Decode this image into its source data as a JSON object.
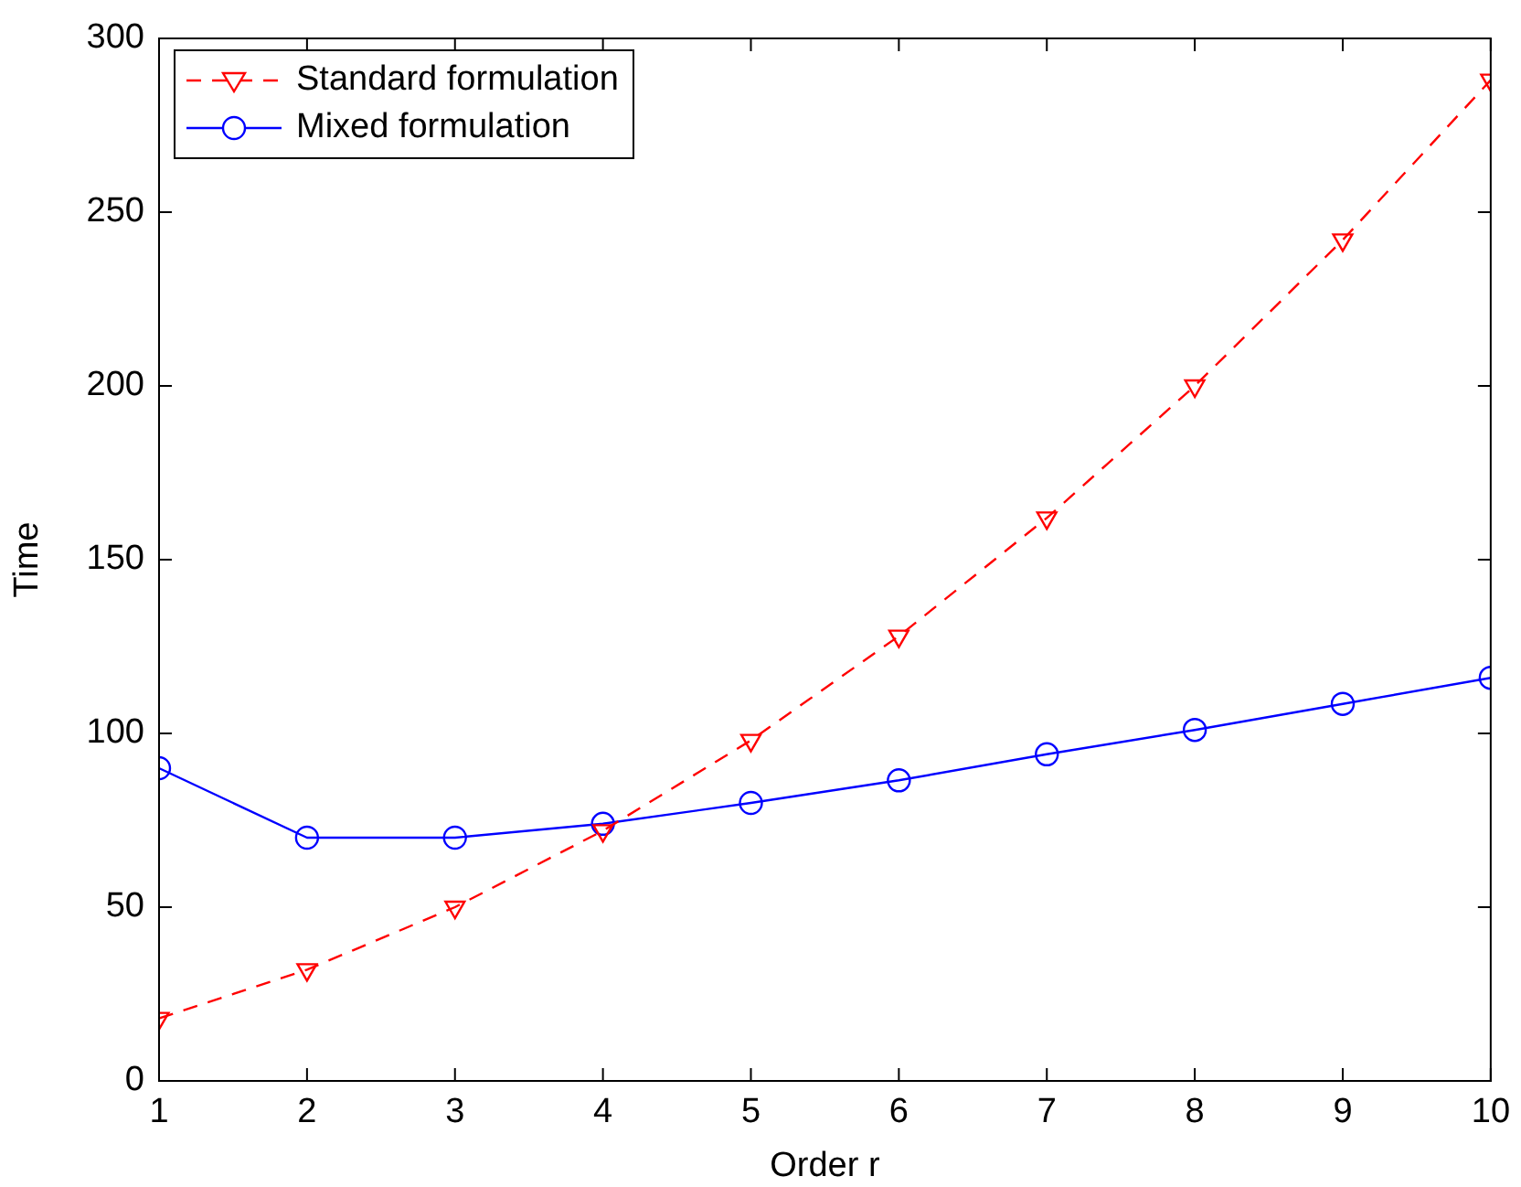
{
  "chart_data": {
    "type": "line",
    "xlabel": "Order r",
    "ylabel": "Time",
    "x": [
      1,
      2,
      3,
      4,
      5,
      6,
      7,
      8,
      9,
      10
    ],
    "series": [
      {
        "name": "Standard formulation",
        "color": "#ff0000",
        "marker": "triangle",
        "line_style": "dashed",
        "values": [
          18,
          32,
          50,
          72,
          98,
          128,
          162,
          200,
          242,
          288
        ]
      },
      {
        "name": "Mixed formulation",
        "color": "#0000ff",
        "marker": "circle",
        "line_style": "solid",
        "values": [
          90,
          70,
          70,
          74,
          80,
          86.5,
          94,
          101,
          108.5,
          116
        ]
      }
    ],
    "xlim": [
      1,
      10
    ],
    "xticks": [
      1,
      2,
      3,
      4,
      5,
      6,
      7,
      8,
      9,
      10
    ],
    "ylim": [
      0,
      300
    ],
    "yticks": [
      0,
      50,
      100,
      150,
      200,
      250,
      300
    ],
    "grid": false,
    "legend": "top left"
  }
}
